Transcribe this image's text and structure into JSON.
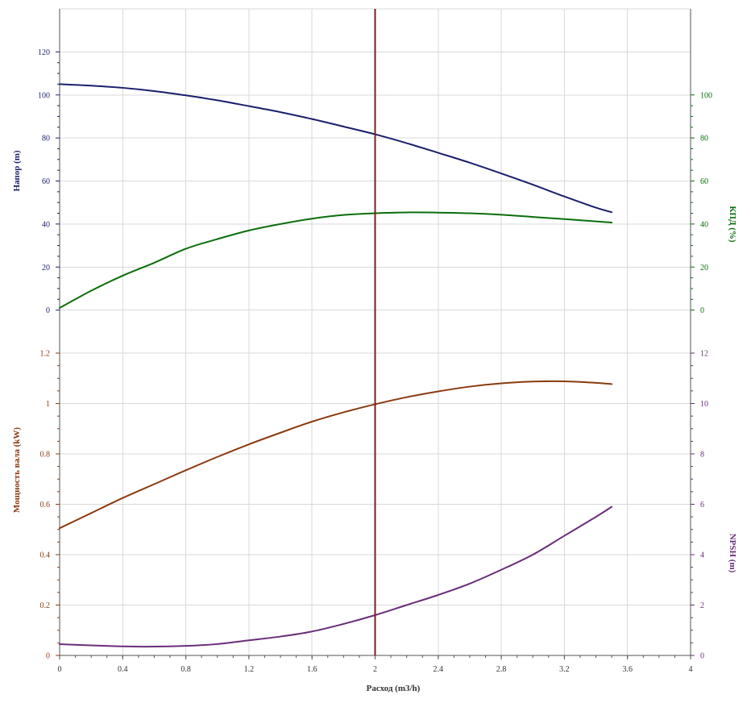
{
  "chart_data": {
    "type": "line",
    "xlabel": "Расход (m3/h)",
    "x_ticks": [
      "0",
      "0.4",
      "0.8",
      "1.2",
      "1.6",
      "2",
      "2.4",
      "2.8",
      "3.2",
      "3.6",
      "4"
    ],
    "xlim": [
      0,
      4
    ],
    "grid": true,
    "duty_point_x": 2,
    "colors": {
      "head": "#1a1f6b",
      "efficiency": "#0a6e0a",
      "power": "#8b3a0f",
      "npsh": "#6a2d7a",
      "duty_line": "#7a1f1f",
      "grid": "#d9d9d9",
      "axis": "#555555"
    },
    "upper_panel": {
      "left_axis": {
        "label": "Напор (m)",
        "ticks": [
          "0",
          "20",
          "40",
          "60",
          "80",
          "100",
          "120"
        ],
        "ylim": [
          -20,
          140
        ]
      },
      "right_axis": {
        "label": "КПД (%)",
        "ticks": [
          "0",
          "20",
          "40",
          "60",
          "80",
          "100"
        ],
        "ylim": [
          -20,
          140
        ]
      },
      "series": [
        {
          "key": "head",
          "axis": "left",
          "x": [
            0,
            0.2,
            0.4,
            0.6,
            0.8,
            1.0,
            1.2,
            1.4,
            1.6,
            1.8,
            2.0,
            2.2,
            2.4,
            2.6,
            2.8,
            3.0,
            3.2,
            3.4,
            3.5
          ],
          "y": [
            105,
            104.3,
            103.3,
            101.8,
            99.8,
            97.5,
            94.8,
            92,
            88.8,
            85.3,
            81.7,
            77.6,
            73.1,
            68.5,
            63.5,
            58.3,
            52.8,
            47.6,
            45.5
          ]
        },
        {
          "key": "efficiency",
          "axis": "right",
          "x": [
            0,
            0.2,
            0.4,
            0.6,
            0.8,
            1.0,
            1.2,
            1.4,
            1.6,
            1.8,
            2.0,
            2.2,
            2.4,
            2.6,
            2.8,
            3.0,
            3.2,
            3.4,
            3.5
          ],
          "y": [
            1,
            9,
            16,
            22,
            28.5,
            33,
            37,
            40,
            42.5,
            44.2,
            45,
            45.4,
            45.3,
            45,
            44.3,
            43.3,
            42.3,
            41.2,
            40.7
          ]
        }
      ]
    },
    "lower_panel": {
      "left_axis": {
        "label": "Мощность вала (kW)",
        "ticks": [
          "0",
          "0.2",
          "0.4",
          "0.6",
          "0.8",
          "1",
          "1.2"
        ],
        "ylim": [
          0,
          1.2
        ]
      },
      "right_axis": {
        "label": "NPSH (m)",
        "ticks": [
          "0",
          "2",
          "4",
          "6",
          "8",
          "10",
          "12"
        ],
        "ylim": [
          0,
          12
        ]
      },
      "series": [
        {
          "key": "power",
          "axis": "left",
          "x": [
            0,
            0.2,
            0.4,
            0.6,
            0.8,
            1.0,
            1.2,
            1.4,
            1.6,
            1.8,
            2.0,
            2.2,
            2.4,
            2.6,
            2.8,
            3.0,
            3.2,
            3.4,
            3.5
          ],
          "y": [
            0.505,
            0.565,
            0.625,
            0.68,
            0.735,
            0.788,
            0.838,
            0.884,
            0.928,
            0.965,
            0.997,
            1.025,
            1.048,
            1.067,
            1.08,
            1.087,
            1.088,
            1.082,
            1.077
          ]
        },
        {
          "key": "npsh",
          "axis": "right",
          "x": [
            0,
            0.2,
            0.4,
            0.6,
            0.8,
            1.0,
            1.2,
            1.4,
            1.6,
            1.8,
            2.0,
            2.2,
            2.4,
            2.6,
            2.8,
            3.0,
            3.2,
            3.4,
            3.5
          ],
          "y": [
            0.45,
            0.4,
            0.36,
            0.35,
            0.38,
            0.45,
            0.6,
            0.75,
            0.95,
            1.25,
            1.6,
            2.0,
            2.4,
            2.85,
            3.4,
            4.0,
            4.75,
            5.5,
            5.9
          ]
        }
      ]
    }
  }
}
